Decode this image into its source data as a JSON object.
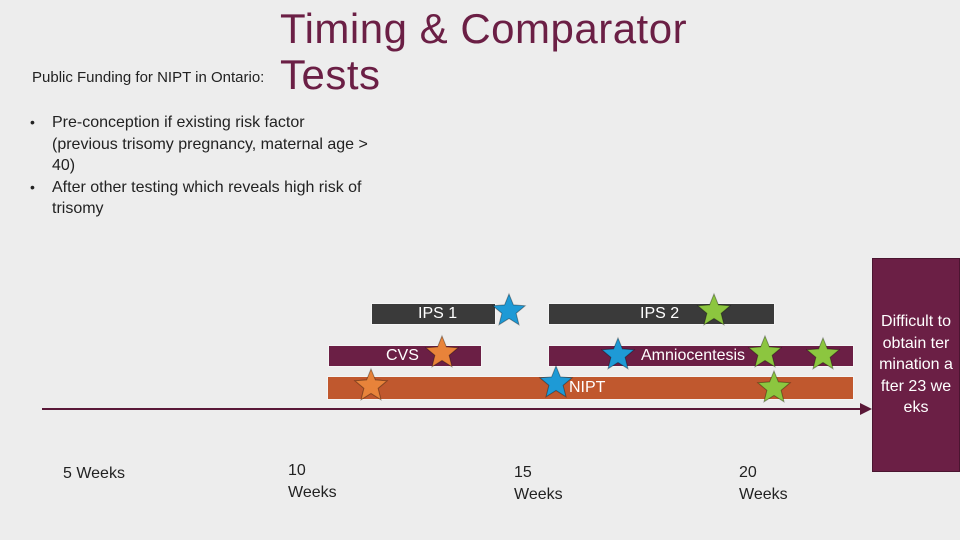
{
  "header": {
    "title": "Timing & Comparator Tests",
    "subtitle": "Public Funding for NIPT in Ontario:"
  },
  "bullets": [
    "Pre-conception if existing risk factor (previous trisomy pregnancy, maternal age > 40)",
    "After other testing which reveals high risk of trisomy"
  ],
  "bars": {
    "ips1": "IPS 1",
    "ips2": "IPS 2",
    "cvs": "CVS",
    "amnio": "Amniocentesis",
    "nipt": "NIPT"
  },
  "weeks": [
    "5 Weeks",
    "10 Weeks",
    "15 Weeks",
    "20 Weeks"
  ],
  "side_note": "Difficult to obtain termination after 23 weeks",
  "colors": {
    "plum": "#6b1f45",
    "dark": "#3a3a3a",
    "nipt": "#c0582e",
    "star_blue": "#1e9ad6",
    "star_orange": "#e8833a",
    "star_green": "#8cc63f"
  }
}
